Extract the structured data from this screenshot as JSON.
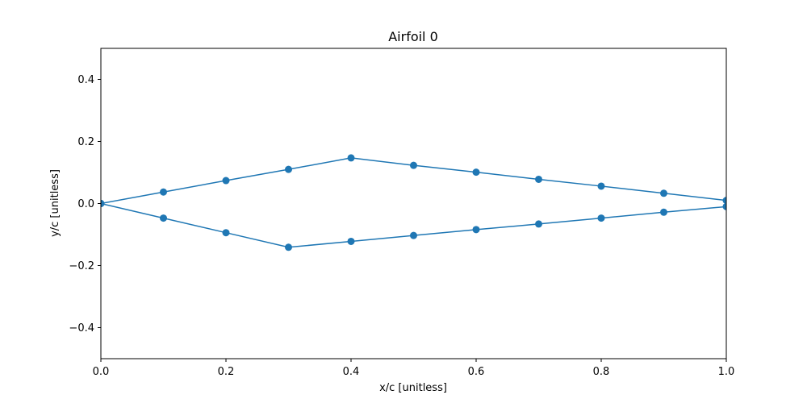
{
  "chart_data": {
    "type": "line",
    "title": "Airfoil 0",
    "xlabel": "x/c [unitless]",
    "ylabel": "y/c [unitless]",
    "xlim": [
      0.0,
      1.0
    ],
    "ylim": [
      -0.5,
      0.5
    ],
    "xticks": [
      {
        "value": 0.0,
        "label": "0.0"
      },
      {
        "value": 0.2,
        "label": "0.2"
      },
      {
        "value": 0.4,
        "label": "0.4"
      },
      {
        "value": 0.6,
        "label": "0.6"
      },
      {
        "value": 0.8,
        "label": "0.8"
      },
      {
        "value": 1.0,
        "label": "1.0"
      }
    ],
    "yticks": [
      {
        "value": -0.4,
        "label": "−0.4"
      },
      {
        "value": -0.2,
        "label": "−0.2"
      },
      {
        "value": 0.0,
        "label": "0.0"
      },
      {
        "value": 0.2,
        "label": "0.2"
      },
      {
        "value": 0.4,
        "label": "0.4"
      }
    ],
    "grid": false,
    "legend": "none",
    "series": [
      {
        "color": "#1f77b4",
        "marker": "circle",
        "x": [
          0.0,
          0.1,
          0.2,
          0.3,
          0.4,
          0.5,
          0.6,
          0.7,
          0.8,
          0.9,
          1.0
        ],
        "y": [
          0.0,
          0.037,
          0.074,
          0.11,
          0.147,
          0.123,
          0.101,
          0.078,
          0.056,
          0.033,
          0.01
        ]
      },
      {
        "color": "#1f77b4",
        "marker": "circle",
        "x": [
          0.0,
          0.1,
          0.2,
          0.3,
          0.4,
          0.5,
          0.6,
          0.7,
          0.8,
          0.9,
          1.0
        ],
        "y": [
          0.0,
          -0.047,
          -0.094,
          -0.141,
          -0.122,
          -0.103,
          -0.084,
          -0.066,
          -0.047,
          -0.028,
          -0.01
        ]
      }
    ]
  }
}
